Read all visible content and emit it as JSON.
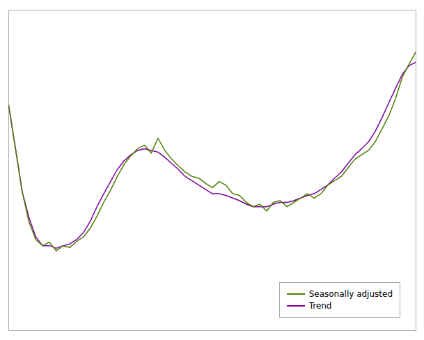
{
  "chart_data": {
    "type": "line",
    "series": [
      {
        "name": "Seasonally adjusted",
        "color": "#4a7c00",
        "values": [
          4.1,
          3.6,
          3.1,
          2.75,
          2.55,
          2.48,
          2.52,
          2.42,
          2.48,
          2.46,
          2.53,
          2.58,
          2.68,
          2.82,
          2.98,
          3.12,
          3.28,
          3.42,
          3.52,
          3.6,
          3.64,
          3.55,
          3.72,
          3.58,
          3.48,
          3.4,
          3.33,
          3.28,
          3.26,
          3.2,
          3.15,
          3.22,
          3.18,
          3.08,
          3.06,
          2.98,
          2.93,
          2.96,
          2.88,
          2.98,
          3.0,
          2.93,
          2.98,
          3.03,
          3.08,
          3.03,
          3.08,
          3.18,
          3.23,
          3.28,
          3.38,
          3.48,
          3.53,
          3.58,
          3.68,
          3.83,
          3.98,
          4.18,
          4.43,
          4.58,
          4.72
        ]
      },
      {
        "name": "Trend",
        "color": "#7b00a0",
        "values": [
          4.1,
          3.6,
          3.1,
          2.8,
          2.58,
          2.48,
          2.48,
          2.45,
          2.48,
          2.5,
          2.55,
          2.63,
          2.76,
          2.93,
          3.08,
          3.22,
          3.36,
          3.46,
          3.53,
          3.58,
          3.6,
          3.58,
          3.56,
          3.5,
          3.43,
          3.36,
          3.28,
          3.23,
          3.18,
          3.13,
          3.08,
          3.08,
          3.06,
          3.03,
          3.0,
          2.96,
          2.93,
          2.93,
          2.93,
          2.96,
          2.98,
          2.98,
          3.0,
          3.03,
          3.06,
          3.08,
          3.13,
          3.18,
          3.26,
          3.33,
          3.43,
          3.53,
          3.6,
          3.68,
          3.8,
          3.96,
          4.13,
          4.3,
          4.46,
          4.56,
          4.6
        ]
      }
    ],
    "ylim": [
      1.5,
      5.2
    ],
    "yticks": [],
    "tick_labels": false,
    "grid": false,
    "legend": "lower right"
  }
}
